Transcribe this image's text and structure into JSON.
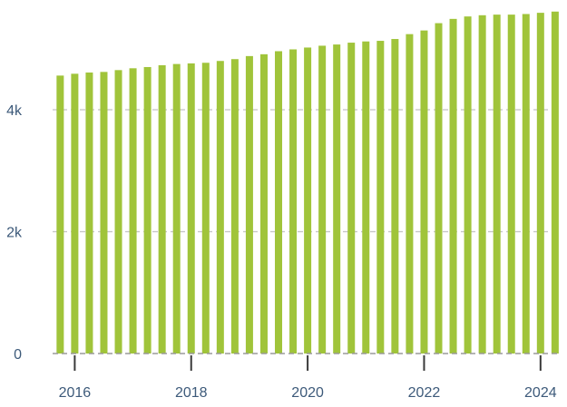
{
  "chart_data": {
    "type": "bar",
    "title": "",
    "xlabel": "",
    "ylabel": "",
    "ylim": [
      0,
      5800
    ],
    "grid": "horizontal dashed",
    "colors": {
      "bar": "#a0c43a",
      "grid": "#c8c8c8",
      "axis": "#3a3a3a",
      "tick_label": "#3d5a7a"
    },
    "y_ticks": [
      {
        "value": 0,
        "label": "0"
      },
      {
        "value": 2000,
        "label": "2k"
      },
      {
        "value": 4000,
        "label": "4k"
      }
    ],
    "x_ticks": [
      {
        "value": 2016,
        "label": "2016"
      },
      {
        "value": 2018,
        "label": "2018"
      },
      {
        "value": 2020,
        "label": "2020"
      },
      {
        "value": 2022,
        "label": "2022"
      },
      {
        "value": 2024,
        "label": "2024"
      }
    ],
    "series": [
      {
        "x": [
          2015.75,
          2016.0,
          2016.25,
          2016.5,
          2016.75,
          2017.0,
          2017.25,
          2017.5,
          2017.75,
          2018.0,
          2018.25,
          2018.5,
          2018.75,
          2019.0,
          2019.25,
          2019.5,
          2019.75,
          2020.0,
          2020.25,
          2020.5,
          2020.75,
          2021.0,
          2021.25,
          2021.5,
          2021.75,
          2022.0,
          2022.25,
          2022.5,
          2022.75,
          2023.0,
          2023.25,
          2023.5,
          2023.75,
          2024.0,
          2024.25
        ],
        "values": [
          4560,
          4590,
          4610,
          4620,
          4650,
          4680,
          4700,
          4730,
          4750,
          4760,
          4770,
          4800,
          4830,
          4880,
          4910,
          4960,
          4990,
          5020,
          5050,
          5070,
          5100,
          5120,
          5130,
          5160,
          5240,
          5300,
          5420,
          5490,
          5530,
          5550,
          5560,
          5560,
          5570,
          5590,
          5610
        ]
      }
    ]
  }
}
